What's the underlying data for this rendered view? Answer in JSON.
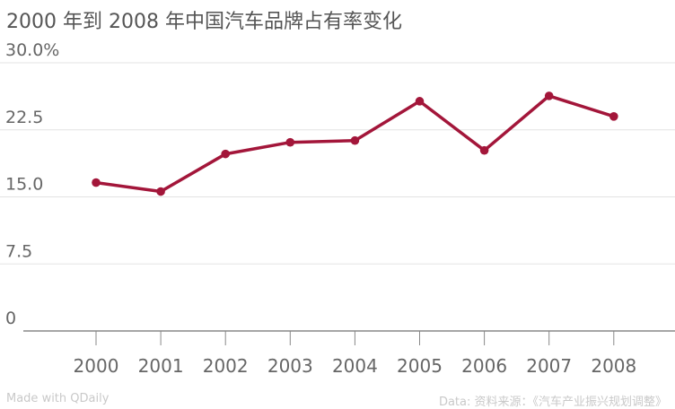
{
  "chart_data": {
    "type": "line",
    "title": "2000 年到 2008 年中国汽车品牌占有率变化",
    "xlabel": "",
    "ylabel": "",
    "categories": [
      "2000",
      "2001",
      "2002",
      "2003",
      "2004",
      "2005",
      "2006",
      "2007",
      "2008"
    ],
    "series": [
      {
        "values": [
          16.6,
          15.6,
          19.8,
          21.1,
          21.3,
          25.7,
          20.2,
          26.3,
          24.0
        ]
      }
    ],
    "ylim": [
      0,
      30
    ],
    "yticks": [
      0,
      7.5,
      15,
      22.5,
      30
    ],
    "ytick_labels": [
      "0",
      "7.5",
      "15.0",
      "22.5",
      "30.0%"
    ],
    "grid": true,
    "legend": "none",
    "line_color": "#a3163a"
  },
  "footer": {
    "left": "Made with QDaily",
    "right": "Data: 资料来源：《汽车产业振兴规划调整》"
  }
}
